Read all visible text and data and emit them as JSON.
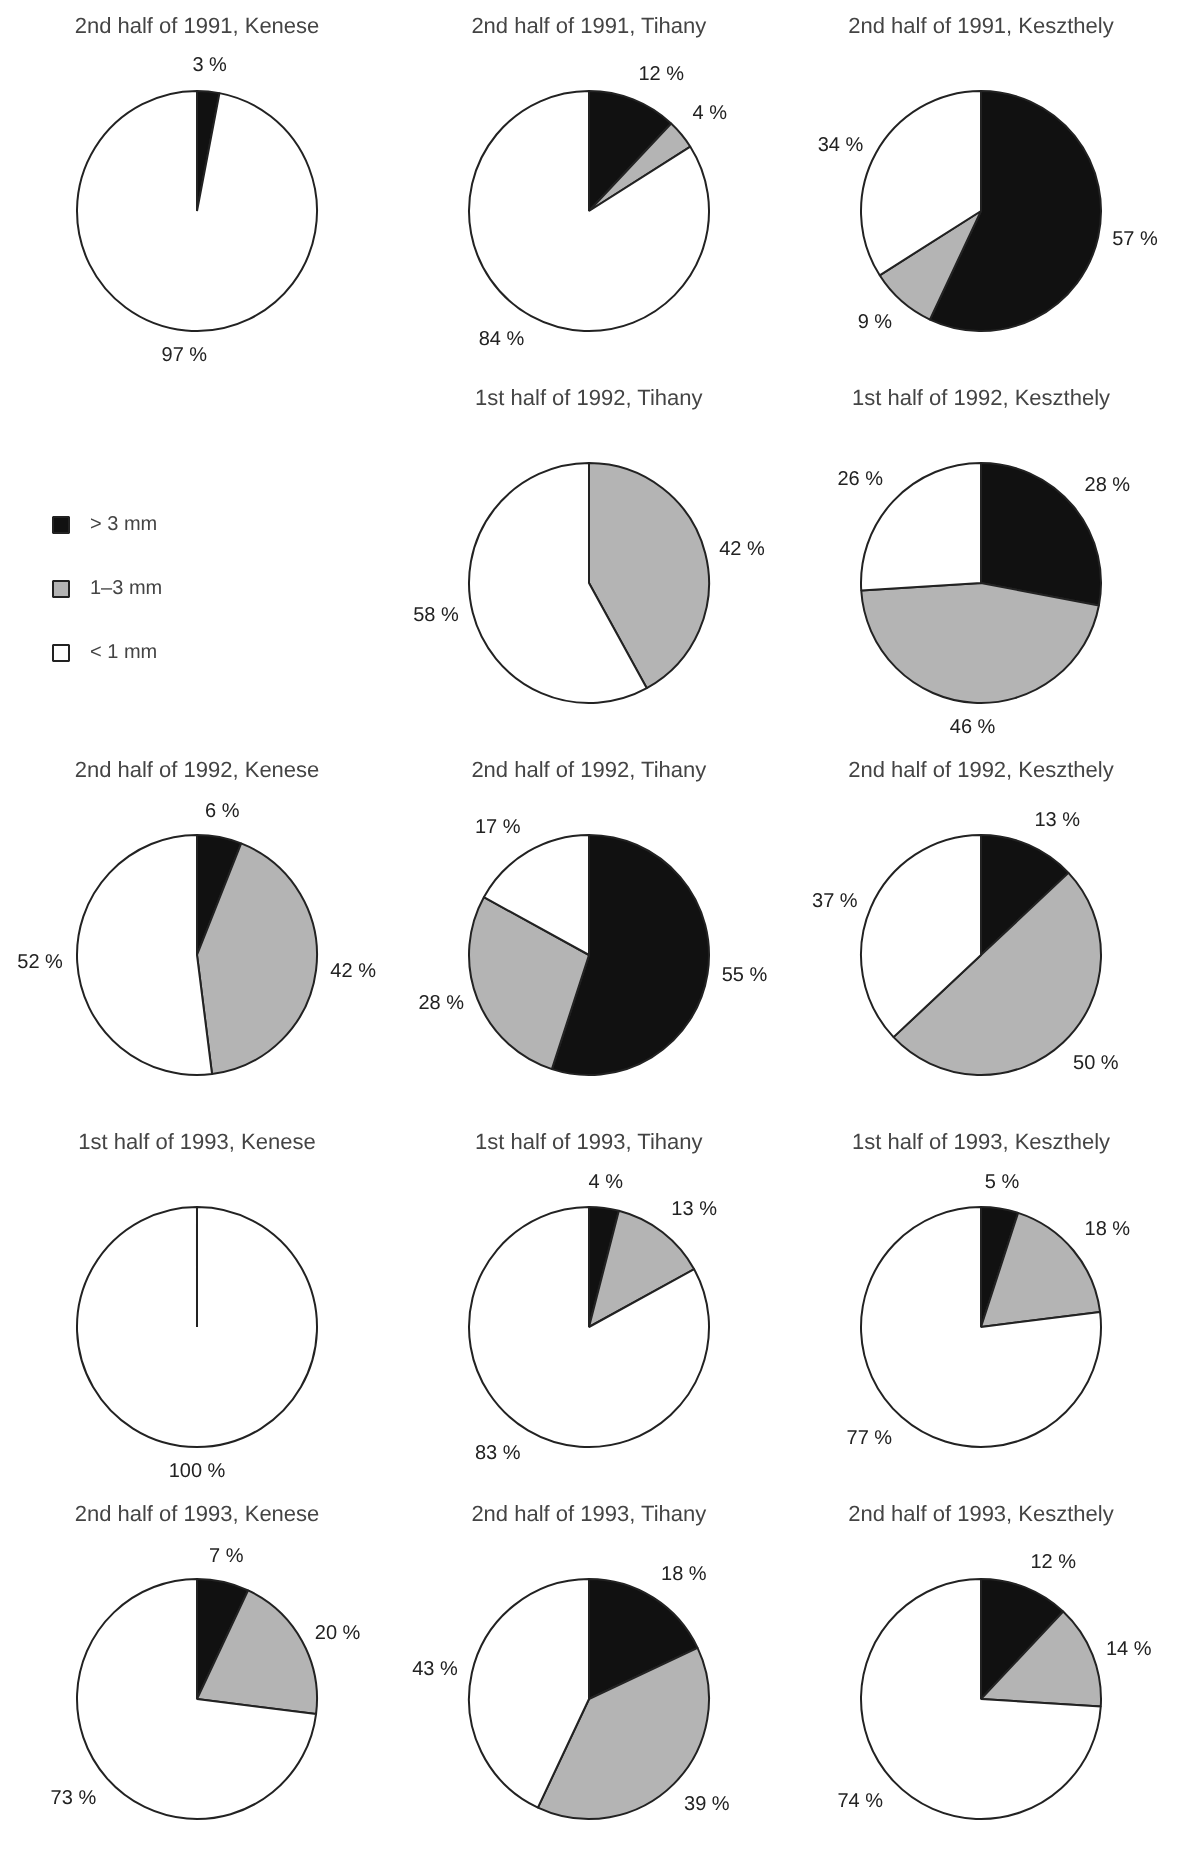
{
  "chart_data": [
    {
      "type": "pie",
      "title": "2nd half of 1991, Kenese",
      "categories": [
        "> 3 mm",
        "1–3 mm",
        "< 1 mm"
      ],
      "values": [
        3,
        0,
        97
      ],
      "colors": [
        "#111111",
        "#b4b4b4",
        "#ffffff"
      ],
      "value_labels": [
        "3 %",
        null,
        "97 %"
      ],
      "legend": "bottom left"
    },
    {
      "type": "pie",
      "title": "2nd half of 1991, Tihany",
      "categories": [
        null,
        null,
        null
      ],
      "values": [
        12,
        4,
        84
      ],
      "colors": [
        "#111111",
        "#b4b4b4",
        "#ffffff"
      ],
      "value_labels": [
        "12 %",
        "4 %",
        "84 %"
      ]
    },
    {
      "type": "pie",
      "title": "2nd half of 1991, Keszthely",
      "categories": [
        null,
        null,
        null
      ],
      "values": [
        57,
        9,
        34
      ],
      "colors": [
        "#111111",
        "#b4b4b4",
        "#ffffff"
      ],
      "value_labels": [
        "57 %",
        "9 %",
        "34 %"
      ]
    },
    {
      "type": "pie",
      "title": "1st half of 1992, Tihany",
      "categories": [
        null,
        null,
        null
      ],
      "values": [
        0,
        42,
        58
      ],
      "colors": [
        "#111111",
        "#b4b4b4",
        "#ffffff"
      ],
      "value_labels": [
        null,
        "42 %",
        "58 %"
      ]
    },
    {
      "type": "pie",
      "title": "1st half of 1992, Keszthely",
      "categories": [
        null,
        null,
        null
      ],
      "values": [
        28,
        46,
        26
      ],
      "colors": [
        "#111111",
        "#b4b4b4",
        "#ffffff"
      ],
      "value_labels": [
        "28 %",
        "46 %",
        "26 %"
      ]
    },
    {
      "type": "pie",
      "title": "2nd half of 1992, Kenese",
      "categories": [
        null,
        null,
        null
      ],
      "values": [
        6,
        42,
        52
      ],
      "colors": [
        "#111111",
        "#b4b4b4",
        "#ffffff"
      ],
      "value_labels": [
        "6 %",
        "42 %",
        "52 %"
      ]
    },
    {
      "type": "pie",
      "title": "2nd half of 1992, Tihany",
      "categories": [
        null,
        null,
        null
      ],
      "values": [
        55,
        28,
        17
      ],
      "colors": [
        "#111111",
        "#b4b4b4",
        "#ffffff"
      ],
      "value_labels": [
        "55 %",
        "28 %",
        "17 %"
      ]
    },
    {
      "type": "pie",
      "title": "2nd half of 1992, Keszthely",
      "categories": [
        null,
        null,
        null
      ],
      "values": [
        13,
        50,
        37
      ],
      "colors": [
        "#111111",
        "#b4b4b4",
        "#ffffff"
      ],
      "value_labels": [
        "13 %",
        "50 %",
        "37 %"
      ]
    },
    {
      "type": "pie",
      "title": "1st half of 1993, Kenese",
      "categories": [
        null,
        null,
        null
      ],
      "values": [
        0,
        0,
        100
      ],
      "colors": [
        "#111111",
        "#b4b4b4",
        "#ffffff"
      ],
      "value_labels": [
        null,
        null,
        "100 %"
      ]
    },
    {
      "type": "pie",
      "title": "1st half of 1993, Tihany",
      "categories": [
        null,
        null,
        null
      ],
      "values": [
        4,
        13,
        83
      ],
      "colors": [
        "#111111",
        "#b4b4b4",
        "#ffffff"
      ],
      "value_labels": [
        "4 %",
        "13 %",
        "83 %"
      ]
    },
    {
      "type": "pie",
      "title": "1st half of 1993, Keszthely",
      "categories": [
        null,
        null,
        null
      ],
      "values": [
        5,
        18,
        77
      ],
      "colors": [
        "#111111",
        "#b4b4b4",
        "#ffffff"
      ],
      "value_labels": [
        "5 %",
        "18 %",
        "77 %"
      ]
    },
    {
      "type": "pie",
      "title": "2nd half of 1993, Kenese",
      "categories": [
        null,
        null,
        null
      ],
      "values": [
        7,
        20,
        73
      ],
      "colors": [
        "#111111",
        "#b4b4b4",
        "#ffffff"
      ],
      "value_labels": [
        "7 %",
        "20 %",
        "73 %"
      ]
    },
    {
      "type": "pie",
      "title": "2nd half of 1993, Tihany",
      "categories": [
        null,
        null,
        null
      ],
      "values": [
        18,
        39,
        43
      ],
      "colors": [
        "#111111",
        "#b4b4b4",
        "#ffffff"
      ],
      "value_labels": [
        "18 %",
        "39 %",
        "43 %"
      ]
    },
    {
      "type": "pie",
      "title": "2nd half of 1993, Keszthely",
      "categories": [
        null,
        null,
        null
      ],
      "values": [
        12,
        14,
        74
      ],
      "colors": [
        "#111111",
        "#b4b4b4",
        "#ffffff"
      ],
      "value_labels": [
        "12 %",
        "14 %",
        "74 %"
      ]
    }
  ]
}
